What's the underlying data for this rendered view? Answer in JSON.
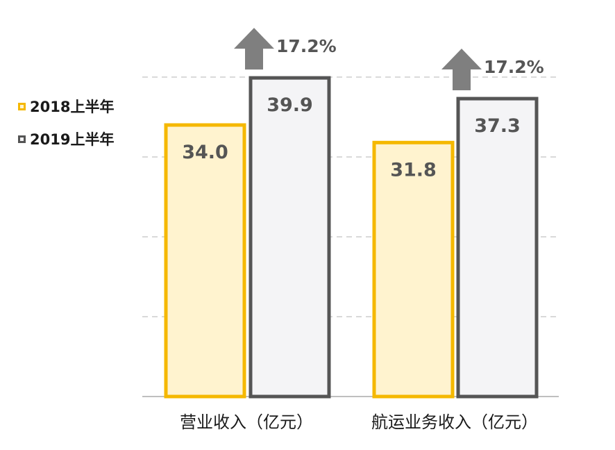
{
  "chart_data": {
    "type": "bar",
    "categories": [
      "营业收入（亿元）",
      "航运业务收入（亿元）"
    ],
    "series": [
      {
        "name": "2018上半年",
        "values": [
          34.0,
          31.8
        ],
        "labels": [
          "34.0",
          "31.8"
        ]
      },
      {
        "name": "2019上半年",
        "values": [
          39.9,
          37.3
        ],
        "labels": [
          "39.9",
          "37.3"
        ]
      }
    ],
    "growth_labels": [
      "17.2%",
      "17.2%"
    ],
    "ylim": [
      0,
      40
    ],
    "grid": true,
    "legend_position": "left"
  },
  "colors": {
    "series_2018_border": "#f5b800",
    "series_2018_fill": "#fff3cf",
    "series_2019_border": "#555555",
    "series_2019_fill": "#f4f4f6",
    "arrow": "#7f7f7f",
    "label_text": "#555555",
    "grid": "#d9d9d9"
  },
  "icons": {
    "growth": "up-arrow-icon"
  }
}
